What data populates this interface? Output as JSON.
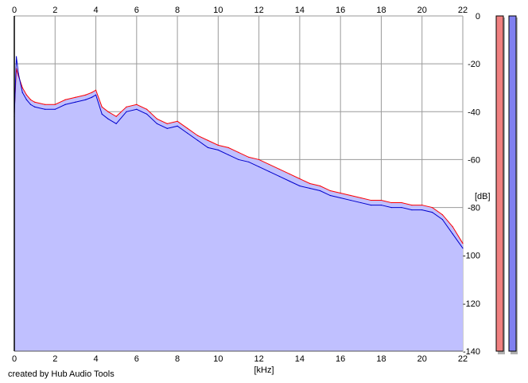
{
  "chart_data": {
    "type": "area",
    "xlabel": "[kHz]",
    "ylabel": "[dB]",
    "xlim": [
      0,
      22
    ],
    "ylim": [
      -140,
      0
    ],
    "x_ticks": [
      0,
      2,
      4,
      6,
      8,
      10,
      12,
      14,
      16,
      18,
      20,
      22
    ],
    "y_ticks": [
      0,
      -20,
      -40,
      -60,
      -80,
      -100,
      -120,
      -140
    ],
    "grid": true,
    "fill_color": "#c0c0ff",
    "series": [
      {
        "color": "#ff0000",
        "x": [
          0.0,
          0.1,
          0.2,
          0.4,
          0.6,
          0.8,
          1.0,
          1.5,
          2.0,
          2.5,
          3.0,
          3.5,
          3.8,
          4.0,
          4.3,
          4.6,
          5.0,
          5.5,
          6.0,
          6.5,
          7.0,
          7.5,
          8.0,
          8.5,
          9.0,
          9.5,
          10.0,
          10.5,
          11.0,
          11.5,
          12.0,
          12.5,
          13.0,
          13.5,
          14.0,
          14.5,
          15.0,
          15.5,
          16.0,
          16.5,
          17.0,
          17.5,
          18.0,
          18.5,
          19.0,
          19.5,
          20.0,
          20.5,
          21.0,
          21.5,
          22.0
        ],
        "values": [
          -40,
          -22,
          -25,
          -30,
          -33,
          -35,
          -36,
          -37,
          -37,
          -35,
          -34,
          -33,
          -32,
          -31,
          -38,
          -40,
          -42,
          -38,
          -37,
          -39,
          -43,
          -45,
          -44,
          -47,
          -50,
          -52,
          -54,
          -55,
          -57,
          -59,
          -60,
          -62,
          -64,
          -66,
          -68,
          -70,
          -71,
          -73,
          -74,
          -75,
          -76,
          -77,
          -77,
          -78,
          -78,
          -79,
          -79,
          -80,
          -83,
          -88,
          -95
        ]
      },
      {
        "color": "#0000cc",
        "x": [
          0.0,
          0.1,
          0.2,
          0.4,
          0.6,
          0.8,
          1.0,
          1.5,
          2.0,
          2.5,
          3.0,
          3.5,
          3.8,
          4.0,
          4.3,
          4.6,
          5.0,
          5.5,
          6.0,
          6.5,
          7.0,
          7.5,
          8.0,
          8.5,
          9.0,
          9.5,
          10.0,
          10.5,
          11.0,
          11.5,
          12.0,
          12.5,
          13.0,
          13.5,
          14.0,
          14.5,
          15.0,
          15.5,
          16.0,
          16.5,
          17.0,
          17.5,
          18.0,
          18.5,
          19.0,
          19.5,
          20.0,
          20.5,
          21.0,
          21.5,
          22.0
        ],
        "values": [
          -42,
          -17,
          -24,
          -32,
          -35,
          -37,
          -38,
          -39,
          -39,
          -37,
          -36,
          -35,
          -34,
          -33,
          -41,
          -43,
          -45,
          -40,
          -39,
          -41,
          -45,
          -47,
          -46,
          -49,
          -52,
          -55,
          -56,
          -58,
          -60,
          -61,
          -63,
          -65,
          -67,
          -69,
          -71,
          -72,
          -73,
          -75,
          -76,
          -77,
          -78,
          -79,
          -79,
          -80,
          -80,
          -81,
          -81,
          -82,
          -85,
          -91,
          -97
        ]
      }
    ],
    "meters": [
      {
        "color": "#f08080"
      },
      {
        "color": "#8080f0"
      }
    ]
  },
  "credit": "created by Hub Audio Tools"
}
